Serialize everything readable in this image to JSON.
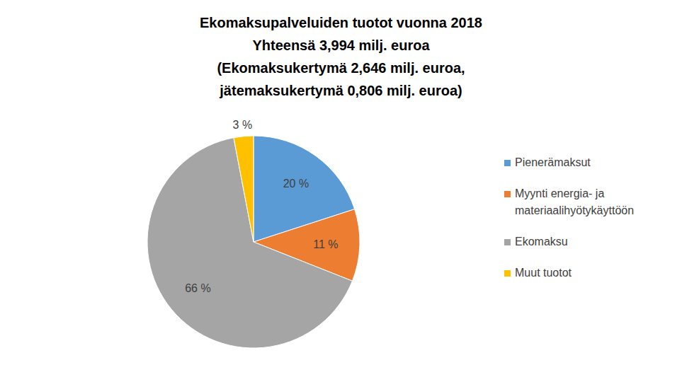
{
  "chart_data": {
    "type": "pie",
    "title": "Ekomaksupalveluiden tuotot vuonna 2018",
    "subtitle": [
      "Yhteensä 3,994 milj. euroa",
      "(Ekomaksukertymä 2,646 milj. euroa,",
      "jätemaksukertymä 0,806 milj. euroa)"
    ],
    "categories": [
      "Pienerämaksut",
      "Myynti energia- ja materiaalihyötykäyttöön",
      "Ekomaksu",
      "Muut tuotot"
    ],
    "values": [
      20,
      11,
      66,
      3
    ],
    "value_labels": [
      "20 %",
      "11 %",
      "66 %",
      "3 %"
    ],
    "colors": [
      "#5B9BD5",
      "#ED7D31",
      "#A5A5A5",
      "#FFC000"
    ],
    "data_labels": true,
    "legend": "right"
  }
}
